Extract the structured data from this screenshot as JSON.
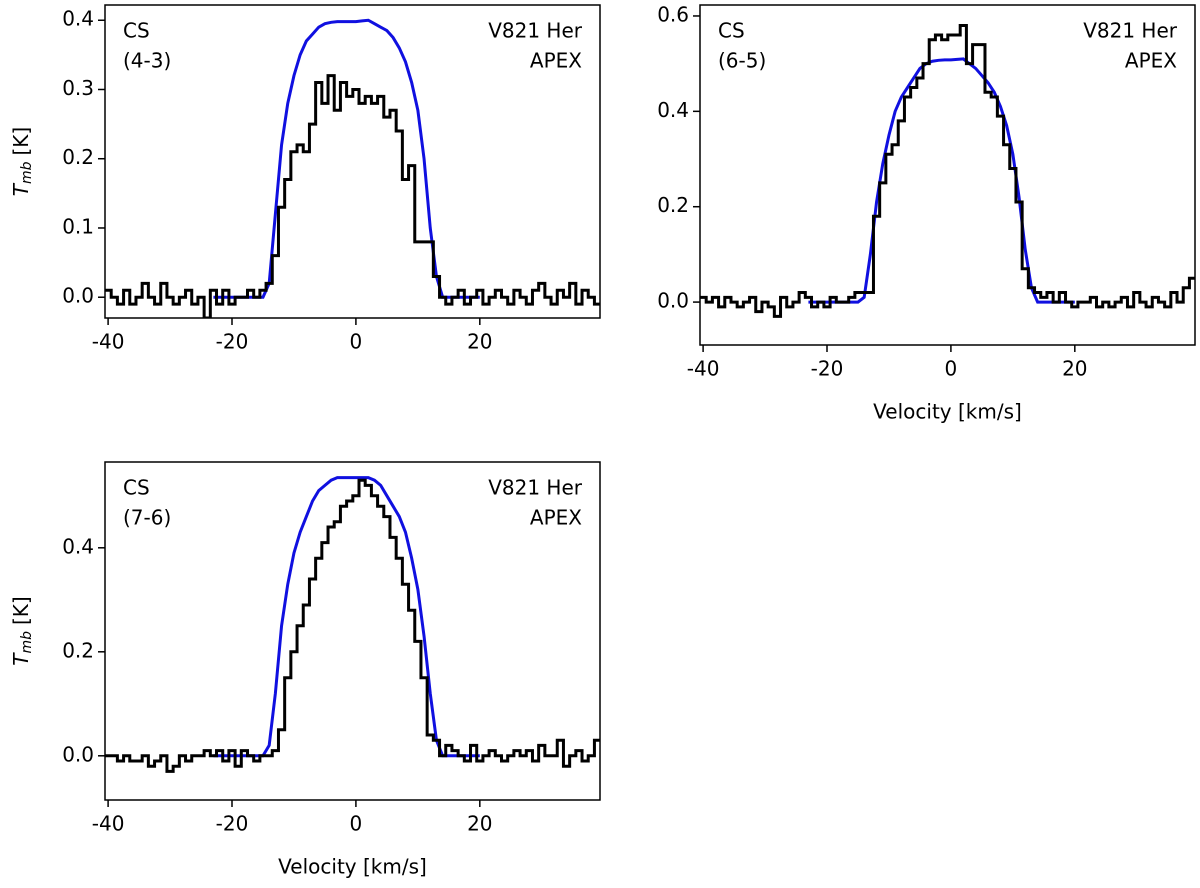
{
  "chart_data": [
    {
      "type": "step",
      "label_left": [
        "CS",
        "(4-3)"
      ],
      "label_right": [
        "V821 Her",
        "APEX"
      ],
      "ylabel": [
        "T",
        "mb",
        "[K]"
      ],
      "xlim": [
        -40.5,
        39.4
      ],
      "ylim": [
        -0.03,
        0.422
      ],
      "xticks": [
        -40,
        -20,
        0,
        20
      ],
      "yticks": [
        {
          "value": 0,
          "label": "0.0"
        },
        0.1,
        0.2,
        0.3,
        0.4
      ],
      "observed": {
        "color": "#000000",
        "x": [
          -40,
          -39,
          -38,
          -37,
          -36,
          -35,
          -34,
          -33,
          -32,
          -31,
          -30,
          -29,
          -28,
          -27,
          -26,
          -25,
          -24,
          -23,
          -22,
          -21,
          -20,
          -19,
          -18,
          -17,
          -16,
          -15,
          -14,
          -13,
          -12,
          -11,
          -10,
          -9,
          -8,
          -7,
          -6,
          -5,
          -4,
          -3,
          -2,
          -1,
          0,
          1,
          2,
          3,
          4,
          5,
          6,
          7,
          8,
          9,
          10,
          11,
          12,
          13,
          14,
          15,
          16,
          17,
          18,
          19,
          20,
          21,
          22,
          23,
          24,
          25,
          26,
          27,
          28,
          29,
          30,
          31,
          32,
          33,
          34,
          35,
          36,
          37,
          38,
          39
        ],
        "values": [
          0.01,
          0.0,
          -0.01,
          0.01,
          -0.01,
          0.0,
          0.02,
          0.0,
          -0.01,
          0.02,
          0.0,
          -0.01,
          0.0,
          0.01,
          -0.01,
          0.0,
          -0.03,
          0.01,
          -0.01,
          0.01,
          -0.01,
          0.0,
          0.0,
          0.01,
          0.0,
          0.01,
          0.02,
          0.06,
          0.13,
          0.17,
          0.21,
          0.22,
          0.21,
          0.25,
          0.31,
          0.28,
          0.32,
          0.27,
          0.31,
          0.29,
          0.3,
          0.28,
          0.29,
          0.28,
          0.29,
          0.26,
          0.27,
          0.24,
          0.17,
          0.19,
          0.08,
          0.08,
          0.08,
          0.03,
          0.0,
          -0.01,
          0.0,
          0.01,
          -0.01,
          0.0,
          0.01,
          -0.01,
          0.0,
          0.01,
          0.0,
          -0.01,
          0.01,
          0.0,
          -0.01,
          0.01,
          0.02,
          0.0,
          -0.01,
          0.01,
          0.0,
          0.02,
          -0.01,
          0.01,
          0.0,
          -0.01
        ]
      },
      "model": {
        "color": "#1010e0",
        "x": [
          -23,
          -22,
          -21,
          -20,
          -19,
          -18,
          -17,
          -16,
          -15,
          -14,
          -13,
          -12,
          -11,
          -10,
          -9,
          -8,
          -7,
          -6,
          -5,
          -4,
          -3,
          -2,
          -1,
          0,
          1,
          2,
          3,
          4,
          5,
          6,
          7,
          8,
          9,
          10,
          11,
          12,
          13,
          14,
          15,
          16,
          17,
          18,
          19,
          20
        ],
        "values": [
          0,
          0,
          0,
          0,
          0,
          0,
          0,
          0,
          0.0,
          0.02,
          0.12,
          0.22,
          0.28,
          0.32,
          0.35,
          0.37,
          0.38,
          0.39,
          0.395,
          0.397,
          0.398,
          0.398,
          0.398,
          0.398,
          0.399,
          0.4,
          0.395,
          0.39,
          0.385,
          0.375,
          0.36,
          0.34,
          0.31,
          0.27,
          0.2,
          0.1,
          0.03,
          0.0,
          0,
          0,
          0,
          0,
          0,
          0
        ]
      }
    },
    {
      "type": "step",
      "label_left": [
        "CS",
        "(6-5)"
      ],
      "label_right": [
        "V821 Her",
        "APEX"
      ],
      "xlabel": "Velocity [km/s]",
      "xlim": [
        -40.5,
        39.4
      ],
      "ylim": [
        -0.09,
        0.623
      ],
      "xticks": [
        -40,
        -20,
        0,
        20
      ],
      "yticks": [
        {
          "value": 0,
          "label": "0.0"
        },
        0.2,
        0.4,
        0.6
      ],
      "observed": {
        "color": "#000000",
        "x": [
          -40,
          -39,
          -38,
          -37,
          -36,
          -35,
          -34,
          -33,
          -32,
          -31,
          -30,
          -29,
          -28,
          -27,
          -26,
          -25,
          -24,
          -23,
          -22,
          -21,
          -20,
          -19,
          -18,
          -17,
          -16,
          -15,
          -14,
          -13,
          -12,
          -11,
          -10,
          -9,
          -8,
          -7,
          -6,
          -5,
          -4,
          -3,
          -2,
          -1,
          0,
          1,
          2,
          3,
          4,
          5,
          6,
          7,
          8,
          9,
          10,
          11,
          12,
          13,
          14,
          15,
          16,
          17,
          18,
          19,
          20,
          21,
          22,
          23,
          24,
          25,
          26,
          27,
          28,
          29,
          30,
          31,
          32,
          33,
          34,
          35,
          36,
          37,
          38,
          39
        ],
        "values": [
          0.01,
          0.0,
          0.01,
          -0.01,
          0.01,
          0.0,
          -0.01,
          0.0,
          0.01,
          -0.02,
          0.0,
          -0.01,
          -0.03,
          0.01,
          -0.01,
          0.0,
          0.02,
          0.01,
          -0.01,
          0.0,
          -0.01,
          0.01,
          0.0,
          0.0,
          0.01,
          0.02,
          0.02,
          0.02,
          0.18,
          0.25,
          0.31,
          0.33,
          0.38,
          0.43,
          0.45,
          0.47,
          0.5,
          0.55,
          0.56,
          0.55,
          0.56,
          0.56,
          0.58,
          0.5,
          0.54,
          0.54,
          0.44,
          0.43,
          0.39,
          0.33,
          0.28,
          0.21,
          0.07,
          0.03,
          0.02,
          0.01,
          0.02,
          0.0,
          0.02,
          0.0,
          -0.01,
          0.0,
          0.0,
          0.01,
          -0.01,
          0.0,
          -0.01,
          0.0,
          0.01,
          -0.01,
          0.02,
          0.0,
          -0.01,
          0.01,
          0.0,
          -0.01,
          0.02,
          0.0,
          0.03,
          0.05
        ]
      },
      "model": {
        "color": "#1010e0",
        "x": [
          -23,
          -22,
          -21,
          -20,
          -19,
          -18,
          -17,
          -16,
          -15,
          -14,
          -13,
          -12,
          -11,
          -10,
          -9,
          -8,
          -7,
          -6,
          -5,
          -4,
          -3,
          -2,
          -1,
          0,
          1,
          2,
          3,
          4,
          5,
          6,
          7,
          8,
          9,
          10,
          11,
          12,
          13,
          14,
          15,
          16,
          17,
          18,
          19,
          20
        ],
        "values": [
          0,
          0,
          0,
          0,
          0,
          0,
          0,
          0,
          0.0,
          0.01,
          0.1,
          0.21,
          0.29,
          0.35,
          0.4,
          0.43,
          0.45,
          0.47,
          0.49,
          0.5,
          0.505,
          0.507,
          0.508,
          0.508,
          0.509,
          0.51,
          0.5,
          0.49,
          0.475,
          0.46,
          0.44,
          0.41,
          0.37,
          0.31,
          0.22,
          0.11,
          0.03,
          0.0,
          0,
          0,
          0,
          0,
          0,
          0
        ]
      }
    },
    {
      "type": "step",
      "label_left": [
        "CS",
        "(7-6)"
      ],
      "label_right": [
        "V821 Her",
        "APEX"
      ],
      "ylabel": [
        "T",
        "mb",
        "[K]"
      ],
      "xlabel": "Velocity [km/s]",
      "xlim": [
        -40.5,
        39.4
      ],
      "ylim": [
        -0.085,
        0.565
      ],
      "xticks": [
        -40,
        -20,
        0,
        20
      ],
      "yticks": [
        {
          "value": 0,
          "label": "0.0"
        },
        0.2,
        0.4
      ],
      "observed": {
        "color": "#000000",
        "x": [
          -40,
          -39,
          -38,
          -37,
          -36,
          -35,
          -34,
          -33,
          -32,
          -31,
          -30,
          -29,
          -28,
          -27,
          -26,
          -25,
          -24,
          -23,
          -22,
          -21,
          -20,
          -19,
          -18,
          -17,
          -16,
          -15,
          -14,
          -13,
          -12,
          -11,
          -10,
          -9,
          -8,
          -7,
          -6,
          -5,
          -4,
          -3,
          -2,
          -1,
          0,
          1,
          2,
          3,
          4,
          5,
          6,
          7,
          8,
          9,
          10,
          11,
          12,
          13,
          14,
          15,
          16,
          17,
          18,
          19,
          20,
          21,
          22,
          23,
          24,
          25,
          26,
          27,
          28,
          29,
          30,
          31,
          32,
          33,
          34,
          35,
          36,
          37,
          38,
          39
        ],
        "values": [
          0.0,
          0.0,
          -0.01,
          0.0,
          -0.01,
          -0.01,
          0.0,
          -0.02,
          -0.01,
          0.0,
          -0.03,
          -0.02,
          0.0,
          -0.01,
          0.0,
          0.0,
          0.01,
          0.0,
          0.01,
          -0.01,
          0.01,
          -0.02,
          0.01,
          0.0,
          -0.01,
          0.0,
          0.0,
          0.01,
          0.05,
          0.15,
          0.2,
          0.25,
          0.29,
          0.34,
          0.38,
          0.41,
          0.44,
          0.45,
          0.48,
          0.49,
          0.5,
          0.53,
          0.52,
          0.5,
          0.48,
          0.46,
          0.42,
          0.38,
          0.33,
          0.28,
          0.22,
          0.15,
          0.04,
          0.03,
          0.0,
          0.02,
          0.01,
          0.0,
          -0.01,
          0.02,
          -0.01,
          0.0,
          0.01,
          0.0,
          -0.01,
          0.0,
          0.01,
          0.0,
          0.01,
          -0.01,
          0.02,
          0.0,
          0.0,
          0.03,
          -0.02,
          0.0,
          0.01,
          -0.01,
          0.0,
          0.03
        ]
      },
      "model": {
        "color": "#1010e0",
        "x": [
          -23,
          -22,
          -21,
          -20,
          -19,
          -18,
          -17,
          -16,
          -15,
          -14,
          -13,
          -12,
          -11,
          -10,
          -9,
          -8,
          -7,
          -6,
          -5,
          -4,
          -3,
          -2,
          -1,
          0,
          1,
          2,
          3,
          4,
          5,
          6,
          7,
          8,
          9,
          10,
          11,
          12,
          13,
          14,
          15,
          16,
          17,
          18,
          19,
          20
        ],
        "values": [
          0,
          0,
          0,
          0,
          0,
          0,
          0,
          0,
          0.0,
          0.02,
          0.12,
          0.25,
          0.33,
          0.39,
          0.43,
          0.46,
          0.49,
          0.51,
          0.52,
          0.53,
          0.535,
          0.535,
          0.535,
          0.535,
          0.535,
          0.535,
          0.53,
          0.52,
          0.5,
          0.48,
          0.46,
          0.43,
          0.38,
          0.32,
          0.23,
          0.12,
          0.03,
          0.0,
          0,
          0,
          0,
          0,
          0,
          0
        ]
      }
    }
  ]
}
